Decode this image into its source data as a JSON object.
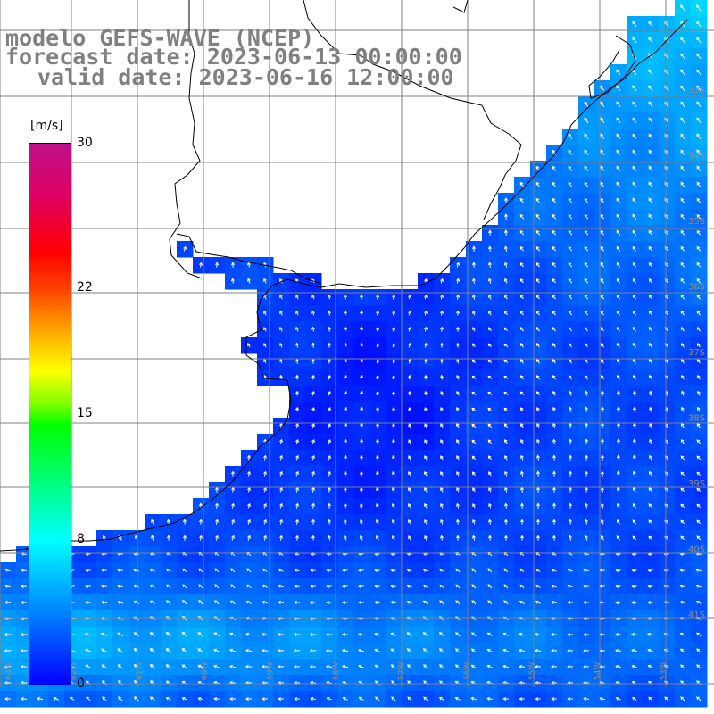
{
  "title": {
    "model": "modelo GEFS-WAVE (NCEP)",
    "forecast": "forecast date: 2023-06-13 00:00:00",
    "valid": "valid date: 2023-06-16 12:00:00"
  },
  "colorbar": {
    "unit": "[m/s]",
    "ticks": [
      "30",
      "22",
      "15",
      "8",
      "0"
    ],
    "tick_values": [
      30,
      22,
      15,
      8,
      0
    ],
    "range": [
      0,
      30
    ],
    "colors": {
      "low": "#0000ff",
      "mid_low": "#00ffff",
      "mid": "#00ff00",
      "mid_high": "#ffff00",
      "high": "#ff0000",
      "top": "#c0108c"
    }
  },
  "map": {
    "lat_labels": [
      "33S",
      "34S",
      "35S",
      "36S",
      "37S",
      "38S",
      "39S",
      "40S",
      "41S"
    ],
    "lon_labels": [
      "63W",
      "62W",
      "61W",
      "60W",
      "59W",
      "58W",
      "57W",
      "56W",
      "55W",
      "54W",
      "53W"
    ],
    "land_color": "#ffffff",
    "grid_color": "#808080",
    "coast_color": "#000000",
    "vector_color": "#ffffff"
  }
}
